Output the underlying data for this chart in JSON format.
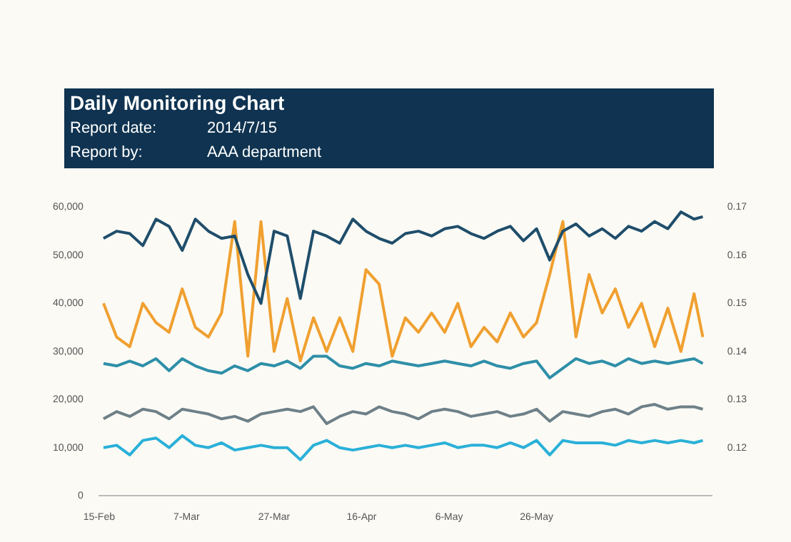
{
  "chart_data": {
    "type": "line",
    "title": "Daily Monitoring Chart",
    "annotations": [
      "Report date:",
      "2014/7/15",
      "Report by:",
      "AAA department"
    ],
    "x": [
      "2014-02-16",
      "2014-02-19",
      "2014-02-22",
      "2014-02-25",
      "2014-02-28",
      "2014-03-03",
      "2014-03-06",
      "2014-03-09",
      "2014-03-12",
      "2014-03-15",
      "2014-03-18",
      "2014-03-21",
      "2014-03-24",
      "2014-03-27",
      "2014-03-30",
      "2014-04-02",
      "2014-04-05",
      "2014-04-08",
      "2014-04-11",
      "2014-04-14",
      "2014-04-17",
      "2014-04-20",
      "2014-04-23",
      "2014-04-26",
      "2014-04-29",
      "2014-05-02",
      "2014-05-05",
      "2014-05-08",
      "2014-05-11",
      "2014-05-14",
      "2014-05-17",
      "2014-05-20",
      "2014-05-23",
      "2014-05-26",
      "2014-05-29",
      "2014-06-01",
      "2014-06-04",
      "2014-06-07",
      "2014-06-10",
      "2014-06-13",
      "2014-06-16",
      "2014-06-19",
      "2014-06-22",
      "2014-06-25",
      "2014-06-28",
      "2014-07-01",
      "2014-07-03"
    ],
    "series": [
      {
        "color": "#1f4e6b",
        "values": [
          53500,
          55000,
          54500,
          52000,
          57500,
          56000,
          51000,
          57500,
          55000,
          53500,
          54000,
          46000,
          40000,
          55000,
          54000,
          41000,
          55000,
          54000,
          52500,
          57500,
          55000,
          53500,
          52500,
          54500,
          55000,
          54000,
          55500,
          56000,
          54500,
          53500,
          55000,
          56000,
          53000,
          55500,
          49000,
          55000,
          56500,
          54000,
          55500,
          53500,
          56000,
          55000,
          57000,
          55500,
          59000,
          57500,
          58000
        ]
      },
      {
        "color": "#f0a030",
        "values": [
          40000,
          33000,
          31000,
          40000,
          36000,
          34000,
          43000,
          35000,
          33000,
          38000,
          57000,
          29000,
          57000,
          30000,
          41000,
          28000,
          37000,
          30000,
          37000,
          30000,
          47000,
          44000,
          29000,
          37000,
          34000,
          38000,
          34000,
          40000,
          31000,
          35000,
          32000,
          38000,
          33000,
          36000,
          46000,
          57000,
          33000,
          46000,
          38000,
          43000,
          35000,
          40000,
          31000,
          39000,
          30000,
          42000,
          33000
        ]
      },
      {
        "color": "#2e8fa8",
        "values": [
          27500,
          27000,
          28000,
          27000,
          28500,
          26000,
          28500,
          27000,
          26000,
          25500,
          27000,
          26000,
          27500,
          27000,
          28000,
          26500,
          29000,
          29000,
          27000,
          26500,
          27500,
          27000,
          28000,
          27500,
          27000,
          27500,
          28000,
          27500,
          27000,
          28000,
          27000,
          26500,
          27500,
          28000,
          24500,
          26500,
          28500,
          27500,
          28000,
          27000,
          28500,
          27500,
          28000,
          27500,
          28000,
          28500,
          27500
        ]
      },
      {
        "color": "#6e8088",
        "values": [
          16000,
          17500,
          16500,
          18000,
          17500,
          16000,
          18000,
          17500,
          17000,
          16000,
          16500,
          15500,
          17000,
          17500,
          18000,
          17500,
          18500,
          15000,
          16500,
          17500,
          17000,
          18500,
          17500,
          17000,
          16000,
          17500,
          18000,
          17500,
          16500,
          17000,
          17500,
          16500,
          17000,
          18000,
          15500,
          17500,
          17000,
          16500,
          17500,
          18000,
          17000,
          18500,
          19000,
          18000,
          18500,
          18500,
          18000
        ]
      },
      {
        "color": "#2ab0d8",
        "values": [
          10000,
          10500,
          8500,
          11500,
          12000,
          10000,
          12500,
          10500,
          10000,
          11000,
          9500,
          10000,
          10500,
          10000,
          10000,
          7500,
          10500,
          11500,
          10000,
          9500,
          10000,
          10500,
          10000,
          10500,
          10000,
          10500,
          11000,
          10000,
          10500,
          10500,
          10000,
          11000,
          10000,
          11500,
          8500,
          11500,
          11000,
          11000,
          11000,
          10500,
          11500,
          11000,
          11500,
          11000,
          11500,
          11000,
          11500
        ]
      }
    ],
    "xlim": [
      "2014-02-15",
      "2014-07-05"
    ],
    "xticks": [
      {
        "value": "2014-02-15",
        "label": "15-Feb"
      },
      {
        "value": "2014-03-07",
        "label": "7-Mar"
      },
      {
        "value": "2014-03-27",
        "label": "27-Mar"
      },
      {
        "value": "2014-04-16",
        "label": "16-Apr"
      },
      {
        "value": "2014-05-06",
        "label": "6-May"
      },
      {
        "value": "2014-05-26",
        "label": "26-May"
      }
    ],
    "ylim": [
      0,
      60000
    ],
    "yticks": [
      {
        "value": 0,
        "label": "0"
      },
      {
        "value": 10000,
        "label": "10,000"
      },
      {
        "value": 20000,
        "label": "20,000"
      },
      {
        "value": 30000,
        "label": "30,000"
      },
      {
        "value": 40000,
        "label": "40,000"
      },
      {
        "value": 50000,
        "label": "50,000"
      },
      {
        "value": 60000,
        "label": "60,000"
      }
    ],
    "y2lim": [
      0.11,
      0.17
    ],
    "y2ticks": [
      0.12,
      0.13,
      0.14,
      0.15,
      0.16,
      0.17
    ],
    "grid": false,
    "legend": false,
    "marker": "none",
    "line_style": "solid"
  }
}
